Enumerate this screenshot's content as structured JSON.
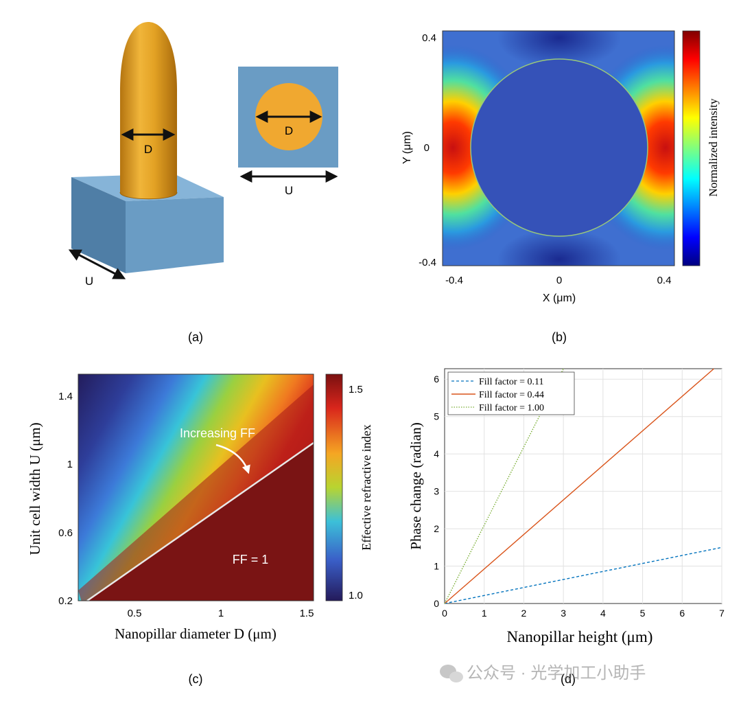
{
  "panels": {
    "a": {
      "label": "(a)",
      "pillar_dim": "D",
      "base_dim": "U",
      "top_circle_dim": "D",
      "top_square_dim": "U",
      "colors": {
        "pillar": "#e3a224",
        "base": "#6a9cc4"
      }
    },
    "b": {
      "label": "(b)",
      "colorbar_label": "Normalized intensity",
      "colormap": "jet"
    },
    "c": {
      "label": "(c)",
      "annotation_increasing": "Increasing FF",
      "annotation_ff": "FF = 1",
      "colorbar_label": "Effective  refractive  index",
      "colorbar_ticks": [
        "1.5",
        "1.0"
      ],
      "colormap": "jet"
    },
    "d": {
      "label": "(d)"
    }
  },
  "watermark": "公众号 · 光学加工小助手",
  "chart_data": [
    {
      "panel": "b",
      "type": "heatmap",
      "xlabel": "X (μm)",
      "ylabel": "Y (μm)",
      "xlim": [
        -0.4,
        0.4
      ],
      "ylim": [
        -0.4,
        0.4
      ],
      "xticks": [
        "-0.4",
        "0",
        "0.4"
      ],
      "yticks": [
        "0.4",
        "0",
        "-0.4"
      ],
      "colorbar": "Normalized intensity"
    },
    {
      "panel": "c",
      "type": "heatmap",
      "xlabel": "Nanopillar diameter D (μm)",
      "ylabel": "Unit cell width U (μm)",
      "xlim": [
        0.2,
        1.55
      ],
      "ylim": [
        0.2,
        1.55
      ],
      "xticks": [
        "0.5",
        "1",
        "1.5"
      ],
      "yticks": [
        "1.4",
        "1",
        "0.6",
        "0.2"
      ],
      "colorbar_range": [
        0.95,
        1.6
      ],
      "annotations": [
        "Increasing FF",
        "FF = 1"
      ]
    },
    {
      "panel": "d",
      "type": "line",
      "xlabel": "Nanopillar height (μm)",
      "ylabel": "Phase change (radian)",
      "xlim": [
        0,
        7
      ],
      "ylim": [
        0,
        6.28
      ],
      "xticks": [
        "0",
        "1",
        "2",
        "3",
        "4",
        "5",
        "6",
        "7"
      ],
      "yticks": [
        "0",
        "1",
        "2",
        "3",
        "4",
        "5",
        "6"
      ],
      "grid": true,
      "legend": "top-left",
      "series": [
        {
          "name": "Fill factor = 0.11",
          "color": "#0072bd",
          "style": "dashed",
          "x": [
            0,
            7
          ],
          "y": [
            0,
            1.5
          ]
        },
        {
          "name": "Fill factor = 0.44",
          "color": "#d95319",
          "style": "solid",
          "x": [
            0,
            6.8
          ],
          "y": [
            0,
            6.28
          ]
        },
        {
          "name": "Fill factor = 1.00",
          "color": "#77ac30",
          "style": "dotted",
          "x": [
            0,
            3.0
          ],
          "y": [
            0,
            6.28
          ]
        }
      ]
    }
  ]
}
